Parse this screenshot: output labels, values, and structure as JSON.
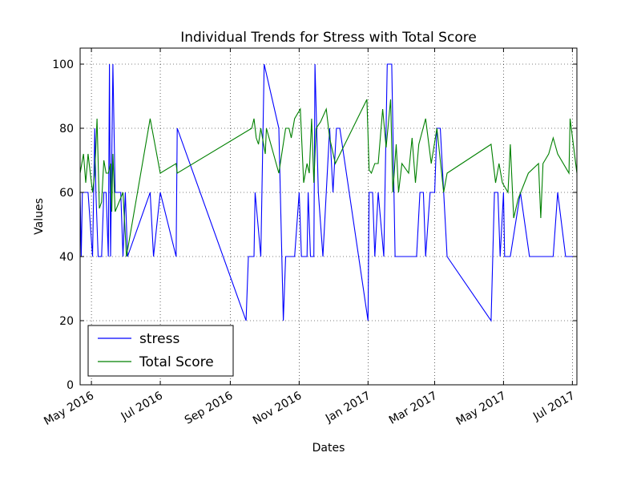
{
  "chart_data": {
    "type": "line",
    "title": "Individual Trends for Stress with Total Score",
    "xlabel": "Dates",
    "ylabel": "Values",
    "ylim": [
      0,
      105
    ],
    "xlim": [
      "2016-04-21",
      "2017-07-05"
    ],
    "grid": true,
    "legend_position": "lower-left",
    "y_ticks": [
      0,
      20,
      40,
      60,
      80,
      100
    ],
    "x_ticks": [
      {
        "date": "2016-05-01",
        "label": "May 2016"
      },
      {
        "date": "2016-07-01",
        "label": "Jul 2016"
      },
      {
        "date": "2016-09-01",
        "label": "Sep 2016"
      },
      {
        "date": "2016-11-01",
        "label": "Nov 2016"
      },
      {
        "date": "2017-01-01",
        "label": "Jan 2017"
      },
      {
        "date": "2017-03-01",
        "label": "Mar 2017"
      },
      {
        "date": "2017-05-01",
        "label": "May 2017"
      },
      {
        "date": "2017-07-01",
        "label": "Jul 2017"
      }
    ],
    "series": [
      {
        "name": "stress",
        "color": "#0000ff",
        "points": [
          [
            "2016-04-21",
            60
          ],
          [
            "2016-04-22",
            40
          ],
          [
            "2016-04-23",
            60
          ],
          [
            "2016-04-28",
            60
          ],
          [
            "2016-05-02",
            40
          ],
          [
            "2016-05-04",
            80
          ],
          [
            "2016-05-05",
            60
          ],
          [
            "2016-05-07",
            40
          ],
          [
            "2016-05-10",
            40
          ],
          [
            "2016-05-12",
            60
          ],
          [
            "2016-05-14",
            60
          ],
          [
            "2016-05-16",
            40
          ],
          [
            "2016-05-17",
            100
          ],
          [
            "2016-05-18",
            40
          ],
          [
            "2016-05-20",
            100
          ],
          [
            "2016-05-22",
            60
          ],
          [
            "2016-05-27",
            60
          ],
          [
            "2016-05-29",
            40
          ],
          [
            "2016-05-31",
            60
          ],
          [
            "2016-06-02",
            40
          ],
          [
            "2016-06-22",
            60
          ],
          [
            "2016-06-25",
            40
          ],
          [
            "2016-07-01",
            60
          ],
          [
            "2016-07-15",
            40
          ],
          [
            "2016-07-16",
            80
          ],
          [
            "2016-09-15",
            20
          ],
          [
            "2016-09-17",
            40
          ],
          [
            "2016-09-22",
            40
          ],
          [
            "2016-09-23",
            60
          ],
          [
            "2016-09-28",
            40
          ],
          [
            "2016-10-01",
            100
          ],
          [
            "2016-10-14",
            80
          ],
          [
            "2016-10-18",
            20
          ],
          [
            "2016-10-20",
            40
          ],
          [
            "2016-10-28",
            40
          ],
          [
            "2016-11-01",
            60
          ],
          [
            "2016-11-03",
            40
          ],
          [
            "2016-11-08",
            40
          ],
          [
            "2016-11-09",
            60
          ],
          [
            "2016-11-11",
            40
          ],
          [
            "2016-11-14",
            40
          ],
          [
            "2016-11-15",
            100
          ],
          [
            "2016-11-18",
            60
          ],
          [
            "2016-11-22",
            40
          ],
          [
            "2016-11-28",
            80
          ],
          [
            "2016-12-01",
            60
          ],
          [
            "2016-12-04",
            80
          ],
          [
            "2016-12-07",
            80
          ],
          [
            "2017-01-01",
            20
          ],
          [
            "2017-01-02",
            60
          ],
          [
            "2017-01-05",
            60
          ],
          [
            "2017-01-07",
            40
          ],
          [
            "2017-01-10",
            60
          ],
          [
            "2017-01-15",
            40
          ],
          [
            "2017-01-18",
            100
          ],
          [
            "2017-01-22",
            100
          ],
          [
            "2017-01-25",
            40
          ],
          [
            "2017-02-13",
            40
          ],
          [
            "2017-02-16",
            60
          ],
          [
            "2017-02-19",
            60
          ],
          [
            "2017-02-21",
            40
          ],
          [
            "2017-02-25",
            60
          ],
          [
            "2017-03-01",
            60
          ],
          [
            "2017-03-03",
            80
          ],
          [
            "2017-03-06",
            80
          ],
          [
            "2017-03-12",
            40
          ],
          [
            "2017-04-20",
            20
          ],
          [
            "2017-04-23",
            60
          ],
          [
            "2017-04-26",
            60
          ],
          [
            "2017-04-28",
            40
          ],
          [
            "2017-05-01",
            60
          ],
          [
            "2017-05-02",
            40
          ],
          [
            "2017-05-05",
            40
          ],
          [
            "2017-05-07",
            40
          ],
          [
            "2017-05-16",
            60
          ],
          [
            "2017-05-24",
            40
          ],
          [
            "2017-06-10",
            40
          ],
          [
            "2017-06-14",
            40
          ],
          [
            "2017-06-18",
            60
          ],
          [
            "2017-06-25",
            40
          ],
          [
            "2017-07-05",
            40
          ]
        ]
      },
      {
        "name": "Total Score",
        "color": "#008000",
        "points": [
          [
            "2016-04-21",
            66
          ],
          [
            "2016-04-24",
            72
          ],
          [
            "2016-04-26",
            63
          ],
          [
            "2016-04-28",
            72
          ],
          [
            "2016-05-02",
            60
          ],
          [
            "2016-05-04",
            66
          ],
          [
            "2016-05-06",
            83
          ],
          [
            "2016-05-08",
            55
          ],
          [
            "2016-05-10",
            57
          ],
          [
            "2016-05-12",
            70
          ],
          [
            "2016-05-14",
            66
          ],
          [
            "2016-05-16",
            66
          ],
          [
            "2016-05-18",
            69
          ],
          [
            "2016-05-19",
            54
          ],
          [
            "2016-05-20",
            72
          ],
          [
            "2016-05-22",
            54
          ],
          [
            "2016-05-29",
            60
          ],
          [
            "2016-06-01",
            40
          ],
          [
            "2016-06-22",
            83
          ],
          [
            "2016-07-01",
            66
          ],
          [
            "2016-07-15",
            69
          ],
          [
            "2016-07-16",
            66
          ],
          [
            "2016-09-20",
            80
          ],
          [
            "2016-09-22",
            83
          ],
          [
            "2016-09-24",
            77
          ],
          [
            "2016-09-26",
            75
          ],
          [
            "2016-09-28",
            80
          ],
          [
            "2016-10-02",
            72
          ],
          [
            "2016-10-03",
            80
          ],
          [
            "2016-10-14",
            66
          ],
          [
            "2016-10-20",
            80
          ],
          [
            "2016-10-23",
            80
          ],
          [
            "2016-10-25",
            77
          ],
          [
            "2016-10-28",
            83
          ],
          [
            "2016-11-02",
            86
          ],
          [
            "2016-11-05",
            63
          ],
          [
            "2016-11-08",
            69
          ],
          [
            "2016-11-10",
            66
          ],
          [
            "2016-11-12",
            83
          ],
          [
            "2016-11-14",
            63
          ],
          [
            "2016-11-16",
            80
          ],
          [
            "2016-11-20",
            82
          ],
          [
            "2016-11-25",
            86
          ],
          [
            "2016-11-28",
            77
          ],
          [
            "2016-12-03",
            69
          ],
          [
            "2016-12-31",
            89
          ],
          [
            "2017-01-02",
            67
          ],
          [
            "2017-01-04",
            66
          ],
          [
            "2017-01-07",
            69
          ],
          [
            "2017-01-10",
            69
          ],
          [
            "2017-01-14",
            86
          ],
          [
            "2017-01-17",
            74
          ],
          [
            "2017-01-21",
            89
          ],
          [
            "2017-01-23",
            60
          ],
          [
            "2017-01-26",
            75
          ],
          [
            "2017-01-28",
            60
          ],
          [
            "2017-01-31",
            69
          ],
          [
            "2017-02-06",
            66
          ],
          [
            "2017-02-09",
            77
          ],
          [
            "2017-02-12",
            63
          ],
          [
            "2017-02-15",
            75
          ],
          [
            "2017-02-21",
            83
          ],
          [
            "2017-02-26",
            69
          ],
          [
            "2017-03-03",
            80
          ],
          [
            "2017-03-09",
            60
          ],
          [
            "2017-03-12",
            66
          ],
          [
            "2017-04-20",
            75
          ],
          [
            "2017-04-24",
            63
          ],
          [
            "2017-04-27",
            69
          ],
          [
            "2017-04-30",
            63
          ],
          [
            "2017-05-05",
            60
          ],
          [
            "2017-05-07",
            75
          ],
          [
            "2017-05-10",
            52
          ],
          [
            "2017-05-14",
            58
          ],
          [
            "2017-05-23",
            66
          ],
          [
            "2017-06-01",
            69
          ],
          [
            "2017-06-03",
            52
          ],
          [
            "2017-06-05",
            69
          ],
          [
            "2017-06-10",
            72
          ],
          [
            "2017-06-14",
            77
          ],
          [
            "2017-06-18",
            72
          ],
          [
            "2017-06-28",
            66
          ],
          [
            "2017-06-29",
            83
          ],
          [
            "2017-07-05",
            66
          ]
        ]
      }
    ]
  }
}
